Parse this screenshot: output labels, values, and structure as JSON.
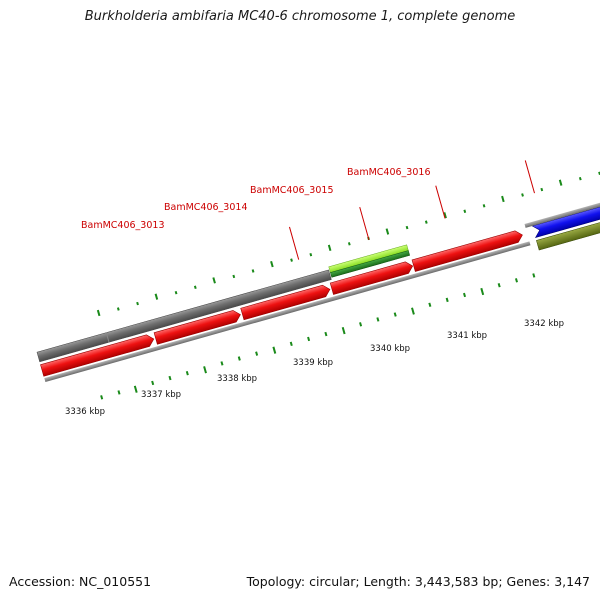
{
  "title": "Burkholderia ambifaria MC40-6 chromosome 1, complete genome",
  "footer": {
    "accession": "Accession: NC_010551",
    "topology": "Topology: circular; Length: 3,443,583 bp; Genes: 3,147"
  },
  "colors": {
    "background": "#ffffff",
    "backbone": "#8a8a8a",
    "tick": "#1a8a1a",
    "label_line": "#cc0000",
    "label_text": "#cc0000",
    "cds_red": "#ee1111",
    "cds_gray": "#6e6e6e",
    "cds_lightgreen": "#99ee33",
    "cds_darkgreen": "#228822",
    "cds_blue": "#1111ee",
    "cds_olive": "#778822"
  },
  "scale_labels": [
    "3336 kbp",
    "3337 kbp",
    "3338 kbp",
    "3339 kbp",
    "3340 kbp",
    "3341 kbp",
    "3342 kbp"
  ],
  "gene_labels": [
    "BamMC406_3013",
    "BamMC406_3014",
    "BamMC406_3015",
    "BamMC406_3016"
  ]
}
